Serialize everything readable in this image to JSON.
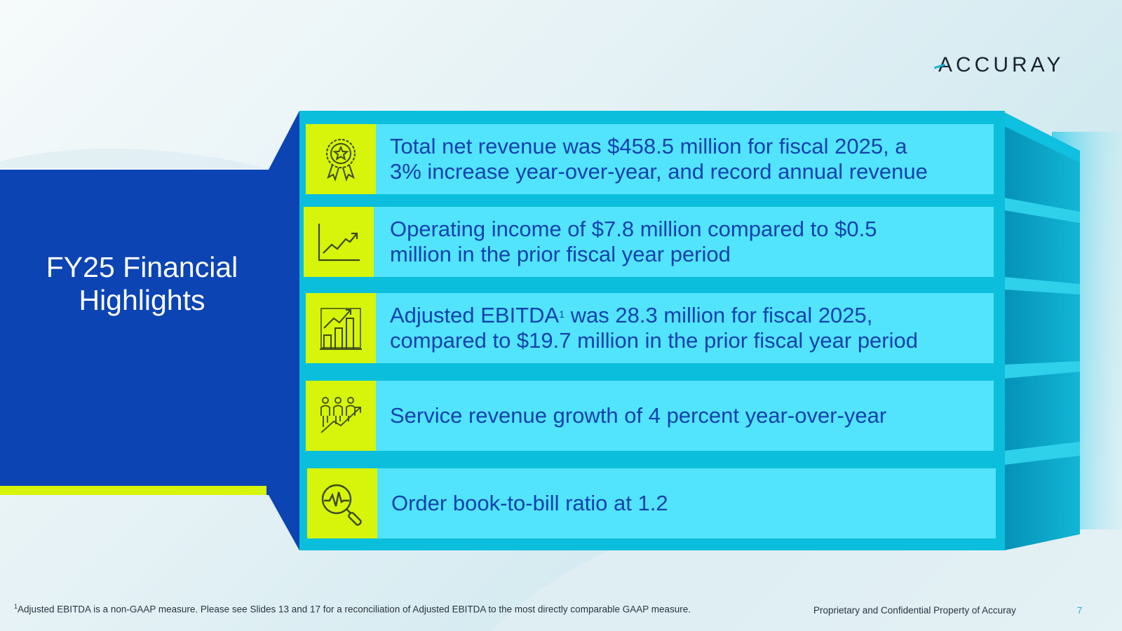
{
  "brand": {
    "logo_text": "ACCURAY"
  },
  "slide": {
    "title_line1": "FY25 Financial",
    "title_line2": "Highlights"
  },
  "highlights": [
    {
      "icon": "award-ribbon-icon",
      "line1": "Total net revenue was $458.5 million for fiscal 2025, a",
      "line2": "3% increase year-over-year, and record annual revenue"
    },
    {
      "icon": "trend-line-chart-icon",
      "line1": "Operating income of $7.8 million compared to $0.5",
      "line2": "million in the prior fiscal year period"
    },
    {
      "icon": "growth-bar-chart-icon",
      "line1_pre": "Adjusted EBITDA",
      "line1_sup": "1",
      "line1_post": " was 28.3 million for fiscal 2025,",
      "line2": "compared to $19.7 million in the prior fiscal year period"
    },
    {
      "icon": "people-growth-icon",
      "line1": "Service revenue growth of 4 percent year-over-year"
    },
    {
      "icon": "magnifier-pulse-icon",
      "line1": "Order book-to-bill ratio at 1.2"
    }
  ],
  "footer": {
    "footnote_marker": "1",
    "footnote_text": "Adjusted EBITDA is a non-GAAP measure.  Please see Slides 13 and 17 for a reconciliation of Adjusted EBITDA to the most directly comparable GAAP measure.",
    "confidential": "Proprietary and Confidential Property of Accuray",
    "page_number": "7"
  },
  "colors": {
    "navy": "#0c44b4",
    "lime": "#d6f50a",
    "cyan_frame": "#0bbedc",
    "cyan_row": "#52e4fc",
    "text_blue": "#1541b0"
  }
}
